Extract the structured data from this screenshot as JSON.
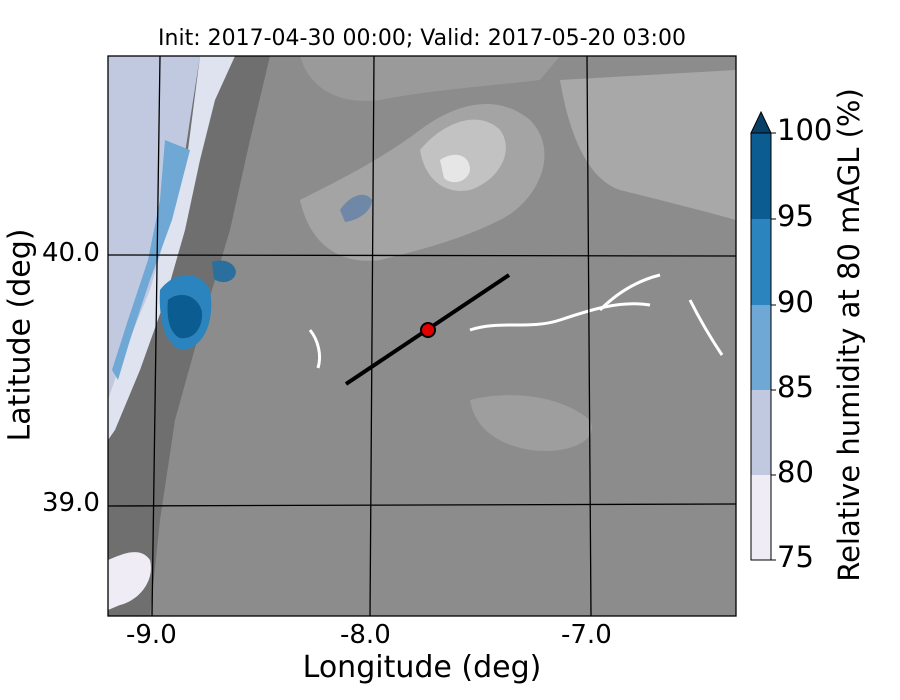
{
  "title": "Init: 2017-04-30 00:00; Valid: 2017-05-20 03:00",
  "xlabel": "Longitude (deg)",
  "ylabel": "Latitude (deg)",
  "x_ticks": [
    "-9.0",
    "-8.0",
    "-7.0"
  ],
  "y_ticks": [
    "40.0",
    "39.0"
  ],
  "colorbar": {
    "label": "Relative humidity at 80 mAGL (%)",
    "ticks": [
      "75",
      "80",
      "85",
      "90",
      "95",
      "100"
    ],
    "colors": [
      "#f0ecf5",
      "#c0c9e0",
      "#6fa8d4",
      "#2b84bd",
      "#0b5d91",
      "#083f66"
    ],
    "extend": "max"
  },
  "map": {
    "terrain_color": "#8c8c8c",
    "gridline_color": "#000000",
    "cross_section_line": {
      "from": [
        -8.12,
        39.48
      ],
      "to": [
        -7.36,
        39.93
      ],
      "color": "#000000"
    },
    "site_marker": {
      "lon": -7.74,
      "lat": 39.69,
      "color": "#e00000"
    }
  }
}
